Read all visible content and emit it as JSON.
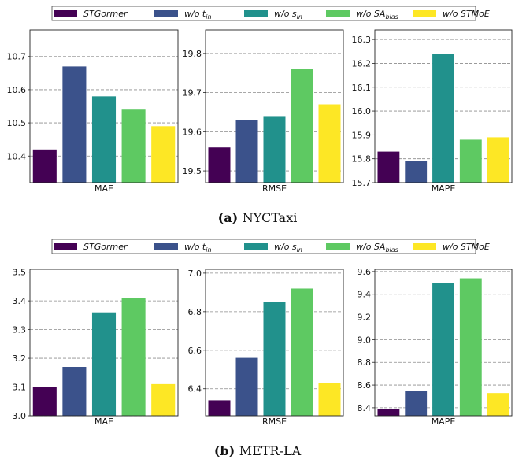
{
  "legend": [
    {
      "label": "STGormer",
      "color": "#440154"
    },
    {
      "label": "w/o t",
      "sub": "in",
      "color": "#3b528b"
    },
    {
      "label": "w/o s",
      "sub": "in",
      "color": "#21918c"
    },
    {
      "label": "w/o SA",
      "sub": "bias",
      "color": "#5ec962"
    },
    {
      "label": "w/o STMoE",
      "sub": "",
      "color": "#fde725"
    }
  ],
  "captions": [
    {
      "tag": "(a)",
      "text": "NYCTaxi"
    },
    {
      "tag": "(b)",
      "text": "METR-LA"
    }
  ],
  "chart_data": [
    {
      "type": "bar",
      "group": "NYCTaxi",
      "xlabel": "MAE",
      "ylim": [
        10.32,
        10.78
      ],
      "yticks": [
        "10.4",
        "10.5",
        "10.6",
        "10.7"
      ],
      "values": [
        10.42,
        10.67,
        10.58,
        10.54,
        10.49
      ],
      "grid": true
    },
    {
      "type": "bar",
      "group": "NYCTaxi",
      "xlabel": "RMSE",
      "ylim": [
        19.47,
        19.86
      ],
      "yticks": [
        "19.5",
        "19.6",
        "19.7",
        "19.8"
      ],
      "values": [
        19.56,
        19.63,
        19.64,
        19.76,
        19.67
      ],
      "grid": true
    },
    {
      "type": "bar",
      "group": "NYCTaxi",
      "xlabel": "MAPE",
      "ylim": [
        15.7,
        16.34
      ],
      "yticks": [
        "15.7",
        "15.8",
        "15.9",
        "16.0",
        "16.1",
        "16.2",
        "16.3"
      ],
      "values": [
        15.83,
        15.79,
        16.24,
        15.88,
        15.89
      ],
      "grid": true
    },
    {
      "type": "bar",
      "group": "METR-LA",
      "xlabel": "MAE",
      "ylim": [
        3.0,
        3.51
      ],
      "yticks": [
        "3.0",
        "3.1",
        "3.2",
        "3.3",
        "3.4",
        "3.5"
      ],
      "values": [
        3.1,
        3.17,
        3.36,
        3.41,
        3.11
      ],
      "grid": true
    },
    {
      "type": "bar",
      "group": "METR-LA",
      "xlabel": "RMSE",
      "ylim": [
        6.26,
        7.02
      ],
      "yticks": [
        "6.4",
        "6.6",
        "6.8",
        "7.0"
      ],
      "values": [
        6.34,
        6.56,
        6.85,
        6.92,
        6.43
      ],
      "grid": true
    },
    {
      "type": "bar",
      "group": "METR-LA",
      "xlabel": "MAPE",
      "ylim": [
        8.33,
        9.62
      ],
      "yticks": [
        "8.4",
        "8.6",
        "8.8",
        "9.0",
        "9.2",
        "9.4",
        "9.6"
      ],
      "values": [
        8.39,
        8.55,
        9.5,
        9.54,
        8.53
      ],
      "grid": true
    }
  ]
}
